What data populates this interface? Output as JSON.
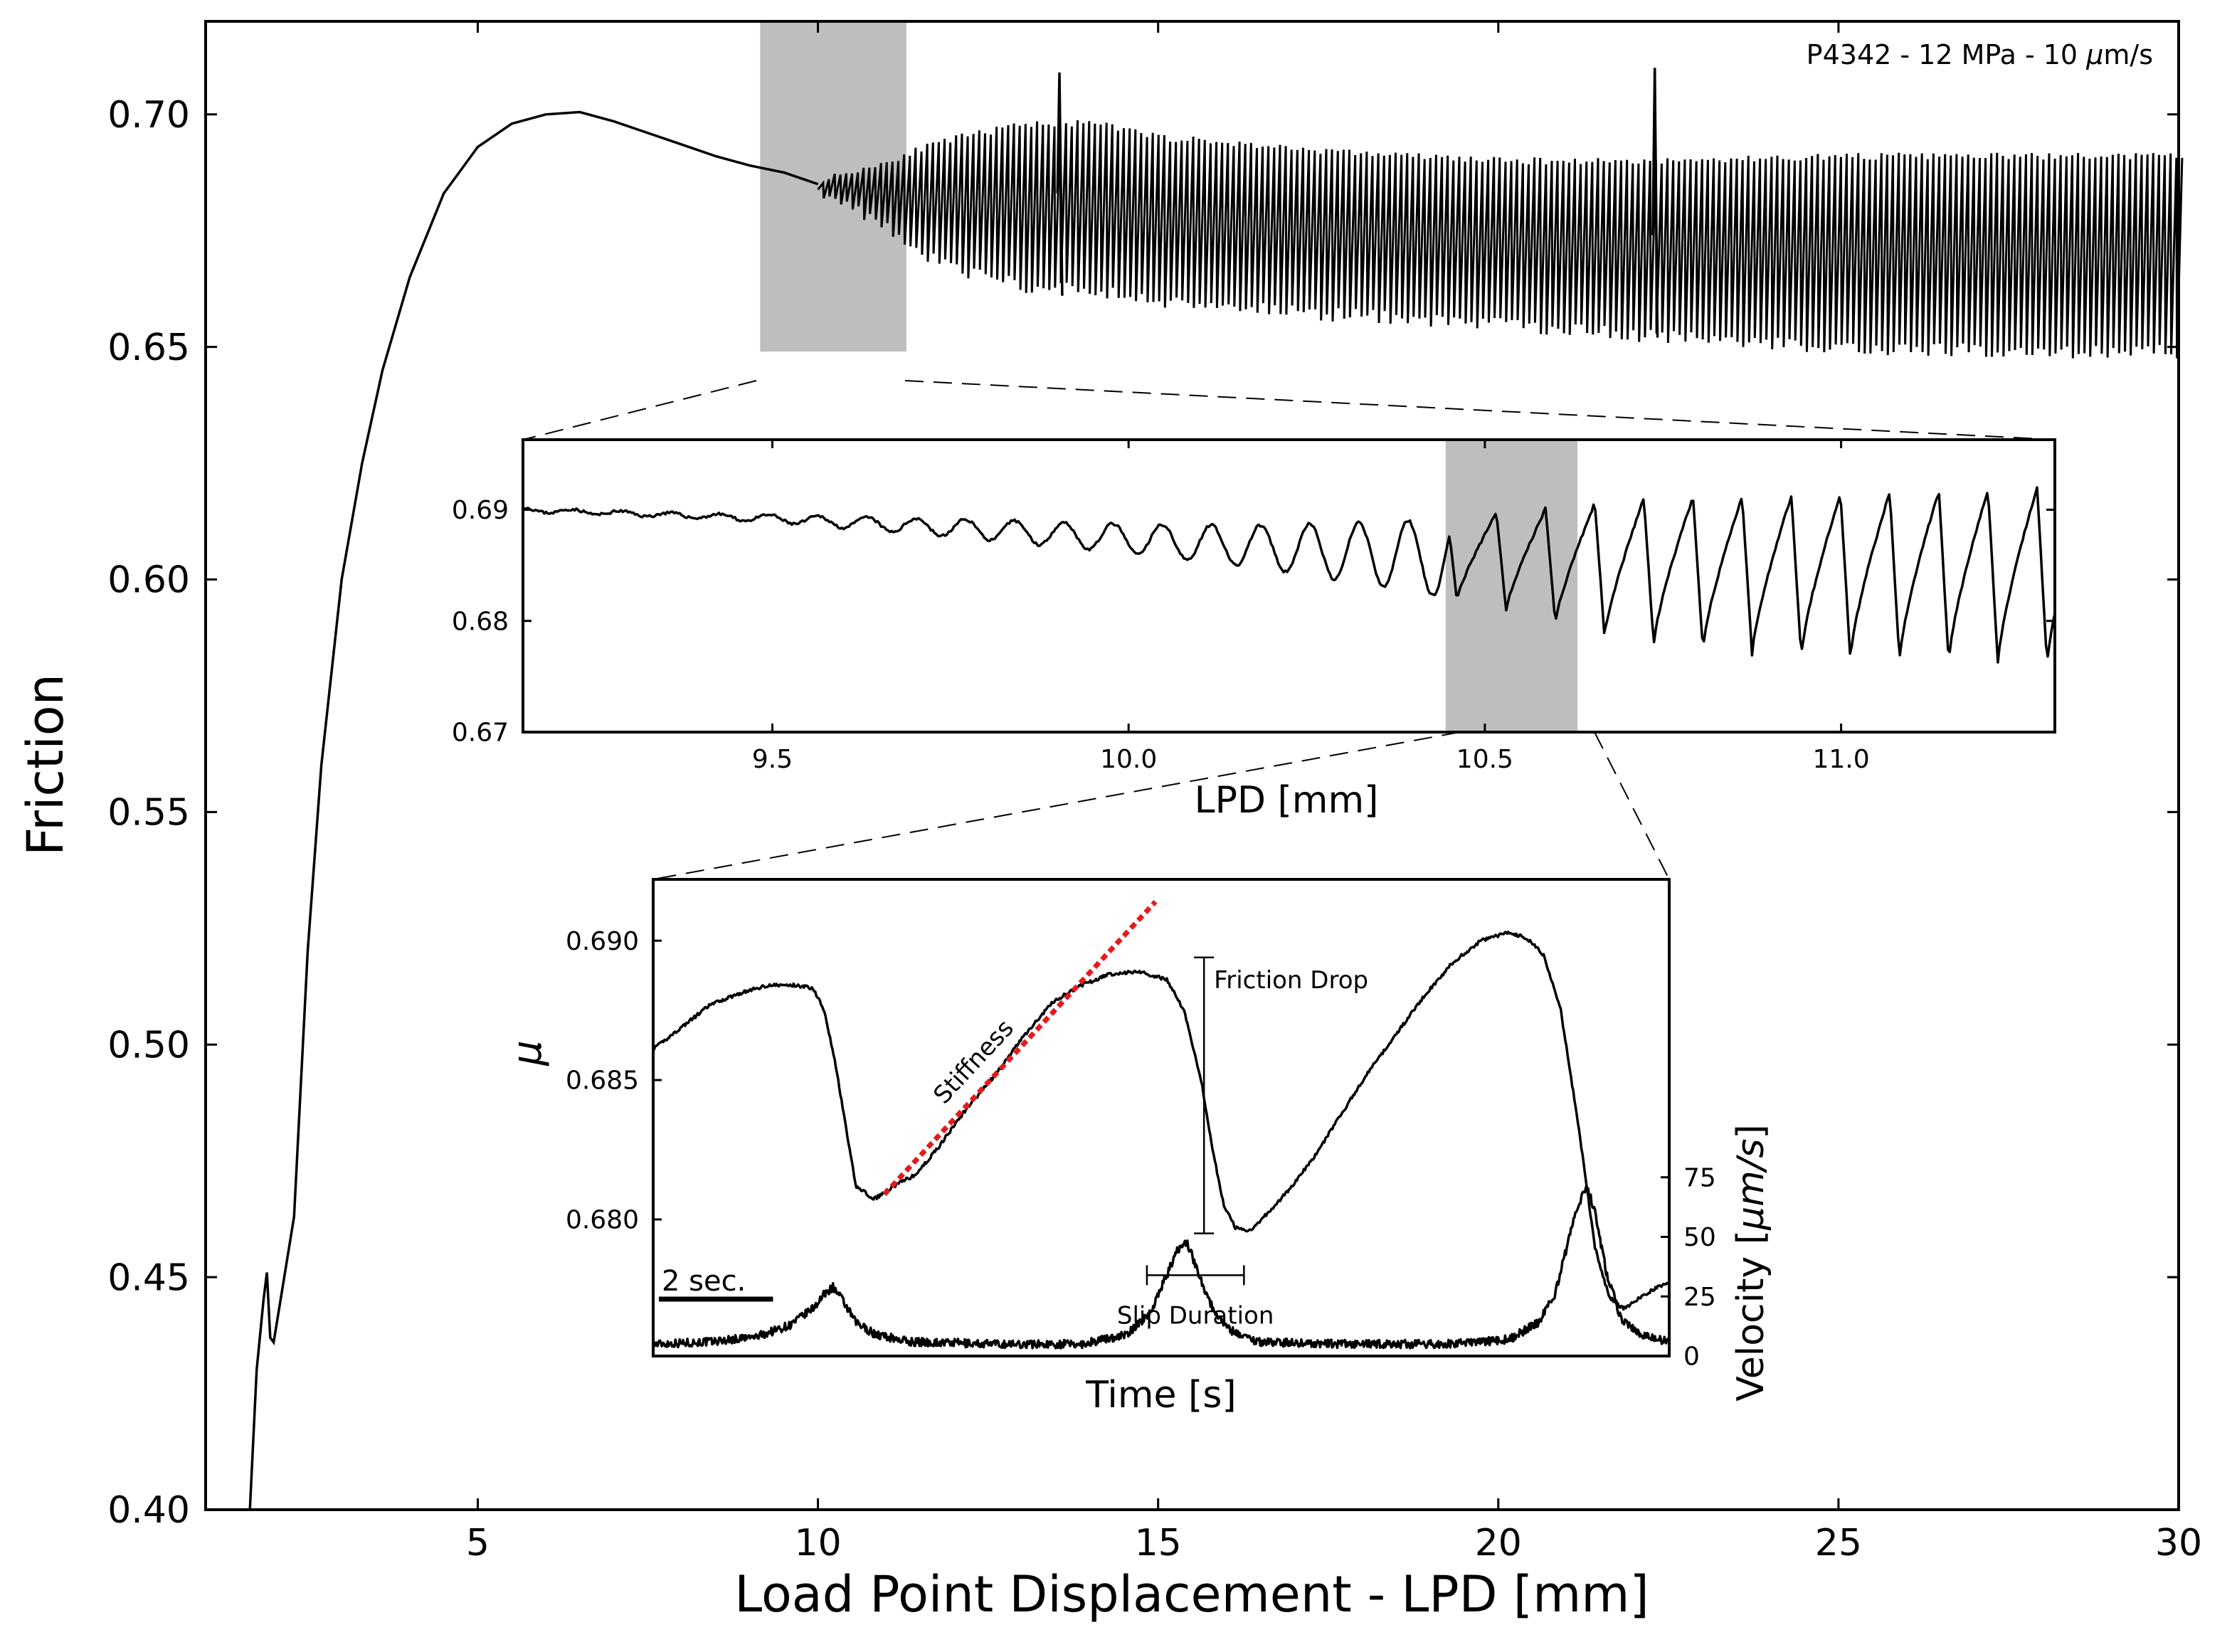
{
  "colors": {
    "line": "#000000",
    "highlight": "#bcbec0",
    "stiffness_fit": "#e41a1c",
    "background": "#ffffff"
  },
  "chart_data": [
    {
      "id": "main",
      "type": "line",
      "annotation": "P4342 - 12 MPa - 10 μm/s",
      "annotation_parts": {
        "pre": "P4342 - 12 MPa - 10 ",
        "unit_mu": "μ",
        "unit_rest": "m/s"
      },
      "xlabel": "Load Point Displacement - LPD [mm]",
      "ylabel": "Friction",
      "xlim": [
        1,
        30
      ],
      "ylim": [
        0.4,
        0.72
      ],
      "xticks": [
        5,
        10,
        15,
        20,
        25,
        30
      ],
      "xtick_labels": [
        "5",
        "10",
        "15",
        "20",
        "25",
        "30"
      ],
      "yticks": [
        0.4,
        0.45,
        0.5,
        0.55,
        0.6,
        0.65,
        0.7
      ],
      "ytick_labels": [
        "0.40",
        "0.45",
        "0.50",
        "0.55",
        "0.60",
        "0.65",
        "0.70"
      ],
      "highlight_region": {
        "x": [
          9.15,
          11.3
        ],
        "y": [
          0.649,
          0.72
        ]
      },
      "series": [
        {
          "style": "steady",
          "points": [
            [
              1.65,
              0.4
            ],
            [
              1.75,
              0.43
            ],
            [
              1.85,
              0.445
            ],
            [
              1.9,
              0.451
            ],
            [
              1.95,
              0.437
            ],
            [
              2.0,
              0.436
            ],
            [
              2.1,
              0.445
            ],
            [
              2.3,
              0.463
            ],
            [
              2.5,
              0.52
            ],
            [
              2.7,
              0.56
            ],
            [
              3.0,
              0.6
            ],
            [
              3.3,
              0.625
            ],
            [
              3.6,
              0.645
            ],
            [
              4.0,
              0.665
            ],
            [
              4.5,
              0.683
            ],
            [
              5.0,
              0.693
            ],
            [
              5.5,
              0.698
            ],
            [
              6.0,
              0.7
            ],
            [
              6.5,
              0.7005
            ],
            [
              7.0,
              0.6985
            ],
            [
              7.5,
              0.696
            ],
            [
              8.0,
              0.6935
            ],
            [
              8.5,
              0.691
            ],
            [
              9.0,
              0.689
            ],
            [
              9.5,
              0.6875
            ],
            [
              10.0,
              0.685
            ]
          ]
        },
        {
          "style": "stick-slip",
          "x_start": 10.0,
          "x_end": 30.0,
          "cycle_mm": 0.085,
          "envelope_x": [
            10.0,
            10.5,
            11.0,
            11.3,
            12.0,
            13.0,
            14.0,
            15.0,
            17.5,
            20.0,
            22.5,
            25.0,
            27.5,
            30.0
          ],
          "envelope_top": [
            0.686,
            0.688,
            0.69,
            0.692,
            0.695,
            0.698,
            0.698,
            0.695,
            0.692,
            0.69,
            0.69,
            0.691,
            0.691,
            0.691
          ],
          "envelope_bot": [
            0.684,
            0.68,
            0.676,
            0.672,
            0.667,
            0.663,
            0.662,
            0.66,
            0.657,
            0.655,
            0.652,
            0.65,
            0.649,
            0.649
          ],
          "spikes": [
            {
              "x": 13.55,
              "peak": 0.709,
              "low": 0.661
            },
            {
              "x": 22.3,
              "peak": 0.71,
              "low": 0.652
            }
          ]
        }
      ]
    },
    {
      "id": "inset_lpd",
      "type": "line",
      "xlabel": "LPD [mm]",
      "ylabel": "",
      "xlim": [
        9.15,
        11.3
      ],
      "ylim": [
        0.67,
        0.6963
      ],
      "xticks": [
        9.5,
        10.0,
        10.5,
        11.0
      ],
      "xtick_labels": [
        "9.5",
        "10.0",
        "10.5",
        "11.0"
      ],
      "yticks": [
        0.67,
        0.68,
        0.69
      ],
      "ytick_labels": [
        "0.67",
        "0.68",
        "0.69"
      ],
      "highlight_region": {
        "x": [
          10.445,
          10.63
        ]
      },
      "series": [
        {
          "style": "oscillation",
          "cycle_mm": 0.069,
          "start_x": 9.15,
          "mean_x": [
            9.15,
            9.5,
            9.8,
            10.1,
            10.3,
            10.5,
            10.6,
            10.7,
            10.9,
            11.1,
            11.3
          ],
          "mean_y": [
            0.69,
            0.6892,
            0.6882,
            0.687,
            0.6862,
            0.6855,
            0.685,
            0.6845,
            0.684,
            0.684,
            0.684
          ],
          "amp_x": [
            9.15,
            9.4,
            9.55,
            9.8,
            10.0,
            10.2,
            10.4,
            10.6,
            10.7,
            10.9,
            11.1,
            11.3
          ],
          "amp_y": [
            0.0002,
            0.0002,
            0.0004,
            0.0009,
            0.0013,
            0.002,
            0.0032,
            0.0052,
            0.0065,
            0.0072,
            0.0076,
            0.008
          ],
          "sawtooth_from_x": 10.45
        }
      ]
    },
    {
      "id": "inset_time",
      "type": "line",
      "xlabel": "Time [s]",
      "ylabel": "μ",
      "ylabel_right": "Velocity [μm/s]",
      "ylabel_right_parts": {
        "pre": "Velocity [",
        "unit_mu": "μ",
        "unit_rest": "m/s",
        "post": "]"
      },
      "xlim": [
        0,
        17.8
      ],
      "ylim": [
        0.6751,
        0.6922
      ],
      "yticks": [
        0.68,
        0.685,
        0.69
      ],
      "ytick_labels": [
        "0.680",
        "0.685",
        "0.690"
      ],
      "right_ylim": [
        0,
        200
      ],
      "right_yticks": [
        0,
        25,
        50,
        75
      ],
      "right_ytick_labels": [
        "0",
        "25",
        "50",
        "75"
      ],
      "scalebar": {
        "label": "2 sec.",
        "t": [
          0.1,
          2.1
        ]
      },
      "annotations": {
        "stiffness": "Stiffness",
        "friction_drop": "Friction Drop",
        "slip_duration": "Slip Duration"
      },
      "stiffness_fit": {
        "t": [
          4.05,
          8.8
        ],
        "mu": [
          0.6809,
          0.6914
        ]
      },
      "friction_drop_bar": {
        "t": 9.65,
        "mu": [
          0.6795,
          0.6894
        ]
      },
      "slip_duration_bar": {
        "t": [
          8.65,
          10.35
        ],
        "mu": 0.678
      },
      "series": [
        {
          "name": "",
          "axis": "left",
          "points": [
            [
              0,
              0.6861
            ],
            [
              0.5,
              0.6869
            ],
            [
              1.0,
              0.6877
            ],
            [
              1.5,
              0.6881
            ],
            [
              2.0,
              0.6884
            ],
            [
              2.5,
              0.6884
            ],
            [
              2.8,
              0.6883
            ],
            [
              3.0,
              0.6875
            ],
            [
              3.2,
              0.6855
            ],
            [
              3.4,
              0.683
            ],
            [
              3.55,
              0.6812
            ],
            [
              3.7,
              0.681
            ],
            [
              3.85,
              0.6807
            ],
            [
              4.0,
              0.6809
            ],
            [
              4.3,
              0.6813
            ],
            [
              4.6,
              0.6816
            ],
            [
              5.0,
              0.6826
            ],
            [
              5.5,
              0.684
            ],
            [
              6.0,
              0.6852
            ],
            [
              6.5,
              0.6866
            ],
            [
              7.0,
              0.6878
            ],
            [
              7.5,
              0.6884
            ],
            [
              8.0,
              0.6888
            ],
            [
              8.5,
              0.6889
            ],
            [
              9.0,
              0.6886
            ],
            [
              9.3,
              0.6875
            ],
            [
              9.6,
              0.685
            ],
            [
              9.8,
              0.6825
            ],
            [
              10.0,
              0.6805
            ],
            [
              10.2,
              0.6797
            ],
            [
              10.45,
              0.6796
            ],
            [
              10.8,
              0.6803
            ],
            [
              11.2,
              0.6812
            ],
            [
              11.6,
              0.6823
            ],
            [
              12.0,
              0.6836
            ],
            [
              12.5,
              0.6852
            ],
            [
              13.0,
              0.6866
            ],
            [
              13.5,
              0.688
            ],
            [
              14.0,
              0.6892
            ],
            [
              14.5,
              0.69
            ],
            [
              15.0,
              0.6903
            ],
            [
              15.3,
              0.6901
            ],
            [
              15.6,
              0.6895
            ],
            [
              15.9,
              0.6875
            ],
            [
              16.2,
              0.6835
            ],
            [
              16.5,
              0.679
            ],
            [
              16.75,
              0.6772
            ],
            [
              17.0,
              0.6768
            ],
            [
              17.3,
              0.6772
            ],
            [
              17.6,
              0.6776
            ],
            [
              17.8,
              0.6777
            ]
          ]
        },
        {
          "name": "",
          "axis": "right",
          "points": [
            [
              0,
              5
            ],
            [
              1.0,
              6
            ],
            [
              1.8,
              8
            ],
            [
              2.4,
              13
            ],
            [
              2.8,
              20
            ],
            [
              3.0,
              26
            ],
            [
              3.15,
              29
            ],
            [
              3.3,
              24
            ],
            [
              3.55,
              14
            ],
            [
              3.9,
              9
            ],
            [
              4.5,
              6
            ],
            [
              6.0,
              5
            ],
            [
              7.5,
              5
            ],
            [
              8.3,
              9
            ],
            [
              8.7,
              18
            ],
            [
              9.0,
              34
            ],
            [
              9.2,
              45
            ],
            [
              9.35,
              48
            ],
            [
              9.55,
              35
            ],
            [
              9.8,
              20
            ],
            [
              10.1,
              11
            ],
            [
              10.6,
              6
            ],
            [
              12.0,
              5
            ],
            [
              14.0,
              5
            ],
            [
              15.0,
              7
            ],
            [
              15.5,
              14
            ],
            [
              15.8,
              26
            ],
            [
              16.0,
              45
            ],
            [
              16.2,
              63
            ],
            [
              16.35,
              72
            ],
            [
              16.5,
              60
            ],
            [
              16.7,
              35
            ],
            [
              16.95,
              16
            ],
            [
              17.3,
              9
            ],
            [
              17.8,
              6
            ]
          ]
        }
      ]
    }
  ]
}
